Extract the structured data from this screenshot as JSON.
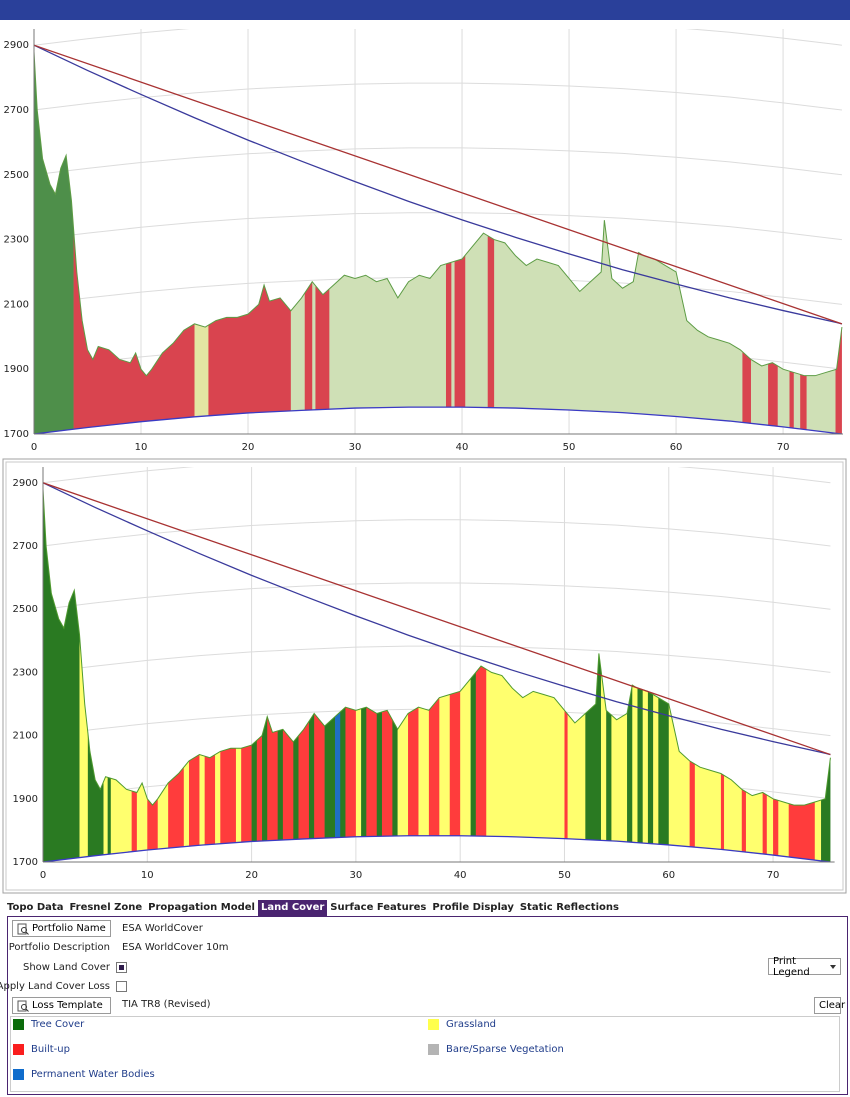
{
  "chart_data": [
    {
      "type": "profile",
      "xlim": [
        0,
        75.6
      ],
      "ylim": [
        1700,
        2950
      ],
      "xticks": [
        0,
        10,
        20,
        30,
        40,
        50,
        60,
        70
      ],
      "yticks": [
        1700,
        1900,
        2100,
        2300,
        2500,
        2700,
        2900
      ],
      "grid": true,
      "color": "#5d9c45",
      "x": [
        0,
        0.3,
        0.8,
        1.5,
        2,
        2.5,
        3,
        3.5,
        4,
        4.5,
        5,
        5.5,
        6,
        7,
        8,
        9,
        9.5,
        10,
        10.5,
        11,
        12,
        13,
        14,
        15,
        16,
        17,
        18,
        19,
        20,
        21,
        21.5,
        22,
        23,
        24,
        25,
        26,
        27,
        28,
        29,
        30,
        31,
        32,
        33,
        34,
        35,
        36,
        37,
        38,
        39,
        40,
        41,
        42,
        43,
        44,
        45,
        46,
        47,
        48,
        49,
        50,
        51,
        52,
        53,
        53.3,
        54,
        55,
        56,
        56.5,
        57,
        58,
        59,
        60,
        61,
        62,
        63,
        64,
        65,
        66,
        67,
        68,
        69,
        70,
        71,
        72,
        73,
        74,
        75,
        75.5
      ],
      "values": [
        2880,
        2700,
        2550,
        2470,
        2440,
        2520,
        2560,
        2420,
        2200,
        2050,
        1960,
        1930,
        1970,
        1960,
        1930,
        1920,
        1950,
        1900,
        1880,
        1900,
        1950,
        1980,
        2020,
        2040,
        2030,
        2050,
        2060,
        2060,
        2070,
        2100,
        2160,
        2110,
        2120,
        2080,
        2120,
        2170,
        2130,
        2160,
        2190,
        2180,
        2190,
        2170,
        2180,
        2120,
        2170,
        2190,
        2180,
        2220,
        2230,
        2240,
        2280,
        2320,
        2300,
        2290,
        2250,
        2220,
        2240,
        2230,
        2220,
        2180,
        2140,
        2170,
        2200,
        2360,
        2180,
        2150,
        2170,
        2260,
        2250,
        2240,
        2220,
        2200,
        2050,
        2020,
        2000,
        1990,
        1980,
        1960,
        1930,
        1910,
        1920,
        1900,
        1890,
        1880,
        1880,
        1890,
        1900,
        2030
      ],
      "sightline": {
        "color": "#a83232",
        "x": [
          0,
          75.5
        ],
        "values": [
          2900,
          2040
        ]
      },
      "curved_sightline": {
        "color": "#3a3a9c",
        "x": [
          0,
          5,
          10,
          15,
          20,
          25,
          30,
          35,
          40,
          45,
          50,
          55,
          60,
          65,
          70,
          75,
          75.5
        ],
        "values": [
          2900,
          2822,
          2748,
          2676,
          2607,
          2542,
          2479,
          2418,
          2361,
          2307,
          2256,
          2207,
          2163,
          2120,
          2081,
          2044,
          2040
        ]
      },
      "earth_curve": {
        "color": "#3a3ac4",
        "x": [
          0,
          5,
          10,
          15,
          20,
          25,
          30,
          35,
          40,
          45,
          50,
          55,
          60,
          65,
          70,
          75,
          75.5
        ],
        "values": [
          1700,
          1720,
          1738,
          1753,
          1765,
          1773,
          1780,
          1783,
          1783,
          1780,
          1774,
          1766,
          1754,
          1740,
          1722,
          1702,
          1700
        ]
      },
      "land_cover": [
        {
          "start": 0,
          "end": 3.7,
          "color": "#4e8f4a"
        },
        {
          "start": 3.7,
          "end": 15,
          "color": "#d9444f"
        },
        {
          "start": 15,
          "end": 16.3,
          "color": "#e3e6a3"
        },
        {
          "start": 16.3,
          "end": 24,
          "color": "#d9444f"
        },
        {
          "start": 24,
          "end": 25.3,
          "color": "#cfe0b6"
        },
        {
          "start": 25.3,
          "end": 26,
          "color": "#d9444f"
        },
        {
          "start": 26,
          "end": 26.3,
          "color": "#cfe0b6"
        },
        {
          "start": 26.3,
          "end": 27.6,
          "color": "#d9444f"
        },
        {
          "start": 27.6,
          "end": 38.5,
          "color": "#cfe0b6"
        },
        {
          "start": 38.5,
          "end": 39,
          "color": "#d9444f"
        },
        {
          "start": 39,
          "end": 39.3,
          "color": "#cfe0b6"
        },
        {
          "start": 39.3,
          "end": 40.3,
          "color": "#d9444f"
        },
        {
          "start": 40.3,
          "end": 42.4,
          "color": "#cfe0b6"
        },
        {
          "start": 42.4,
          "end": 43,
          "color": "#d9444f"
        },
        {
          "start": 43,
          "end": 66.2,
          "color": "#cfe0b6"
        },
        {
          "start": 66.2,
          "end": 67,
          "color": "#d9444f"
        },
        {
          "start": 67,
          "end": 68.6,
          "color": "#cfe0b6"
        },
        {
          "start": 68.6,
          "end": 69.5,
          "color": "#d9444f"
        },
        {
          "start": 69.5,
          "end": 70.6,
          "color": "#cfe0b6"
        },
        {
          "start": 70.6,
          "end": 71,
          "color": "#d9444f"
        },
        {
          "start": 71,
          "end": 71.6,
          "color": "#cfe0b6"
        },
        {
          "start": 71.6,
          "end": 72.2,
          "color": "#d9444f"
        },
        {
          "start": 72.2,
          "end": 74.9,
          "color": "#cfe0b6"
        },
        {
          "start": 74.9,
          "end": 75.5,
          "color": "#d9444f"
        }
      ]
    },
    {
      "type": "profile",
      "xlim": [
        0,
        75.9
      ],
      "ylim": [
        1700,
        2950
      ],
      "xticks": [
        0,
        10,
        20,
        30,
        40,
        50,
        60,
        70
      ],
      "yticks": [
        1700,
        1900,
        2100,
        2300,
        2500,
        2700,
        2900
      ],
      "grid": true,
      "color": "#4f9a2f",
      "x": [
        0,
        0.3,
        0.8,
        1.5,
        2,
        2.5,
        3,
        3.5,
        4,
        4.5,
        5,
        5.5,
        6,
        7,
        8,
        9,
        9.5,
        10,
        10.5,
        11,
        12,
        13,
        14,
        15,
        16,
        17,
        18,
        19,
        20,
        21,
        21.5,
        22,
        23,
        24,
        25,
        26,
        27,
        28,
        29,
        30,
        31,
        32,
        33,
        34,
        35,
        36,
        37,
        38,
        39,
        40,
        41,
        42,
        43,
        44,
        45,
        46,
        47,
        48,
        49,
        50,
        51,
        52,
        53,
        53.3,
        54,
        55,
        56,
        56.5,
        57,
        58,
        59,
        60,
        61,
        62,
        63,
        64,
        65,
        66,
        67,
        68,
        69,
        70,
        71,
        72,
        73,
        74,
        75,
        75.5
      ],
      "values": [
        2880,
        2700,
        2550,
        2470,
        2440,
        2520,
        2560,
        2420,
        2200,
        2050,
        1960,
        1930,
        1970,
        1960,
        1930,
        1920,
        1950,
        1900,
        1880,
        1900,
        1950,
        1980,
        2020,
        2040,
        2030,
        2050,
        2060,
        2060,
        2070,
        2100,
        2160,
        2110,
        2120,
        2080,
        2120,
        2170,
        2130,
        2160,
        2190,
        2180,
        2190,
        2170,
        2180,
        2120,
        2170,
        2190,
        2180,
        2220,
        2230,
        2240,
        2280,
        2320,
        2300,
        2290,
        2250,
        2220,
        2240,
        2230,
        2220,
        2180,
        2140,
        2170,
        2200,
        2360,
        2180,
        2150,
        2170,
        2260,
        2250,
        2240,
        2220,
        2200,
        2050,
        2020,
        2000,
        1990,
        1980,
        1960,
        1930,
        1910,
        1920,
        1900,
        1890,
        1880,
        1880,
        1890,
        1900,
        2030
      ],
      "sightline": {
        "color": "#a83232",
        "x": [
          0,
          75.5
        ],
        "values": [
          2900,
          2040
        ]
      },
      "curved_sightline": {
        "color": "#3a3a9c",
        "x": [
          0,
          5,
          10,
          15,
          20,
          25,
          30,
          35,
          40,
          45,
          50,
          55,
          60,
          65,
          70,
          75,
          75.5
        ],
        "values": [
          2900,
          2822,
          2748,
          2676,
          2607,
          2542,
          2479,
          2418,
          2361,
          2307,
          2256,
          2207,
          2163,
          2120,
          2081,
          2044,
          2040
        ]
      },
      "earth_curve": {
        "color": "#3a3ac4",
        "x": [
          0,
          5,
          10,
          15,
          20,
          25,
          30,
          35,
          40,
          45,
          50,
          55,
          60,
          65,
          70,
          75,
          75.5
        ],
        "values": [
          1700,
          1720,
          1738,
          1753,
          1765,
          1773,
          1780,
          1783,
          1783,
          1780,
          1774,
          1766,
          1754,
          1740,
          1722,
          1702,
          1700
        ]
      },
      "land_cover": [
        {
          "start": 0,
          "end": 3.5,
          "color": "#2a7a22"
        },
        {
          "start": 3.5,
          "end": 4.3,
          "color": "#ffff6e"
        },
        {
          "start": 4.3,
          "end": 5.8,
          "color": "#2a7a22"
        },
        {
          "start": 5.8,
          "end": 6.2,
          "color": "#ffff6e"
        },
        {
          "start": 6.2,
          "end": 6.5,
          "color": "#2a7a22"
        },
        {
          "start": 6.5,
          "end": 8.5,
          "color": "#ffff6e"
        },
        {
          "start": 8.5,
          "end": 9,
          "color": "#ff3c3c"
        },
        {
          "start": 9,
          "end": 10,
          "color": "#ffff6e"
        },
        {
          "start": 10,
          "end": 11,
          "color": "#ff3c3c"
        },
        {
          "start": 11,
          "end": 12,
          "color": "#ffff6e"
        },
        {
          "start": 12,
          "end": 13.5,
          "color": "#ff3c3c"
        },
        {
          "start": 13.5,
          "end": 14,
          "color": "#ffff6e"
        },
        {
          "start": 14,
          "end": 15,
          "color": "#ff3c3c"
        },
        {
          "start": 15,
          "end": 15.5,
          "color": "#ffff6e"
        },
        {
          "start": 15.5,
          "end": 16.5,
          "color": "#ff3c3c"
        },
        {
          "start": 16.5,
          "end": 17,
          "color": "#ffff6e"
        },
        {
          "start": 17,
          "end": 18.5,
          "color": "#ff3c3c"
        },
        {
          "start": 18.5,
          "end": 19,
          "color": "#ffff6e"
        },
        {
          "start": 19,
          "end": 20,
          "color": "#ff3c3c"
        },
        {
          "start": 20,
          "end": 20.5,
          "color": "#2a7a22"
        },
        {
          "start": 20.5,
          "end": 21,
          "color": "#ff3c3c"
        },
        {
          "start": 21,
          "end": 21.5,
          "color": "#2a7a22"
        },
        {
          "start": 21.5,
          "end": 22.5,
          "color": "#ff3c3c"
        },
        {
          "start": 22.5,
          "end": 23,
          "color": "#2a7a22"
        },
        {
          "start": 23,
          "end": 24,
          "color": "#ff3c3c"
        },
        {
          "start": 24,
          "end": 24.5,
          "color": "#2a7a22"
        },
        {
          "start": 24.5,
          "end": 25.5,
          "color": "#ff3c3c"
        },
        {
          "start": 25.5,
          "end": 26,
          "color": "#2a7a22"
        },
        {
          "start": 26,
          "end": 27,
          "color": "#ff3c3c"
        },
        {
          "start": 27,
          "end": 28,
          "color": "#2a7a22"
        },
        {
          "start": 28,
          "end": 28.5,
          "color": "#1f6fc4"
        },
        {
          "start": 28.5,
          "end": 29,
          "color": "#2a7a22"
        },
        {
          "start": 29,
          "end": 30,
          "color": "#ff3c3c"
        },
        {
          "start": 30,
          "end": 30.5,
          "color": "#ffff6e"
        },
        {
          "start": 30.5,
          "end": 31,
          "color": "#2a7a22"
        },
        {
          "start": 31,
          "end": 32,
          "color": "#ff3c3c"
        },
        {
          "start": 32,
          "end": 32.5,
          "color": "#2a7a22"
        },
        {
          "start": 32.5,
          "end": 33.5,
          "color": "#ff3c3c"
        },
        {
          "start": 33.5,
          "end": 34,
          "color": "#2a7a22"
        },
        {
          "start": 34,
          "end": 35,
          "color": "#ffff6e"
        },
        {
          "start": 35,
          "end": 36,
          "color": "#ff3c3c"
        },
        {
          "start": 36,
          "end": 37,
          "color": "#ffff6e"
        },
        {
          "start": 37,
          "end": 38,
          "color": "#ff3c3c"
        },
        {
          "start": 38,
          "end": 39,
          "color": "#ffff6e"
        },
        {
          "start": 39,
          "end": 40,
          "color": "#ff3c3c"
        },
        {
          "start": 40,
          "end": 41,
          "color": "#ffff6e"
        },
        {
          "start": 41,
          "end": 41.5,
          "color": "#2a7a22"
        },
        {
          "start": 41.5,
          "end": 42.5,
          "color": "#ff3c3c"
        },
        {
          "start": 42.5,
          "end": 50,
          "color": "#ffff6e"
        },
        {
          "start": 50,
          "end": 50.3,
          "color": "#ff3c3c"
        },
        {
          "start": 50.3,
          "end": 52,
          "color": "#ffff6e"
        },
        {
          "start": 52,
          "end": 53.5,
          "color": "#2a7a22"
        },
        {
          "start": 53.5,
          "end": 54,
          "color": "#ffff6e"
        },
        {
          "start": 54,
          "end": 54.5,
          "color": "#2a7a22"
        },
        {
          "start": 54.5,
          "end": 56,
          "color": "#ffff6e"
        },
        {
          "start": 56,
          "end": 56.5,
          "color": "#2a7a22"
        },
        {
          "start": 56.5,
          "end": 57,
          "color": "#ffff6e"
        },
        {
          "start": 57,
          "end": 57.5,
          "color": "#2a7a22"
        },
        {
          "start": 57.5,
          "end": 58,
          "color": "#ffff6e"
        },
        {
          "start": 58,
          "end": 58.5,
          "color": "#2a7a22"
        },
        {
          "start": 58.5,
          "end": 59,
          "color": "#ffff6e"
        },
        {
          "start": 59,
          "end": 60,
          "color": "#2a7a22"
        },
        {
          "start": 60,
          "end": 62,
          "color": "#ffff6e"
        },
        {
          "start": 62,
          "end": 62.5,
          "color": "#ff3c3c"
        },
        {
          "start": 62.5,
          "end": 65,
          "color": "#ffff6e"
        },
        {
          "start": 65,
          "end": 65.3,
          "color": "#ff3c3c"
        },
        {
          "start": 65.3,
          "end": 67,
          "color": "#ffff6e"
        },
        {
          "start": 67,
          "end": 67.4,
          "color": "#ff3c3c"
        },
        {
          "start": 67.4,
          "end": 69,
          "color": "#ffff6e"
        },
        {
          "start": 69,
          "end": 69.4,
          "color": "#ff3c3c"
        },
        {
          "start": 69.4,
          "end": 70,
          "color": "#ffff6e"
        },
        {
          "start": 70,
          "end": 70.5,
          "color": "#ff3c3c"
        },
        {
          "start": 70.5,
          "end": 71.5,
          "color": "#ffff6e"
        },
        {
          "start": 71.5,
          "end": 74,
          "color": "#ff3c3c"
        },
        {
          "start": 74,
          "end": 74.6,
          "color": "#ffff6e"
        },
        {
          "start": 74.6,
          "end": 75.5,
          "color": "#2a7a22"
        }
      ]
    }
  ],
  "tabs": [
    {
      "label": "Topo Data"
    },
    {
      "label": "Fresnel Zone"
    },
    {
      "label": "Propagation Model"
    },
    {
      "label": "Land Cover",
      "active": true
    },
    {
      "label": "Surface Features"
    },
    {
      "label": "Profile Display"
    },
    {
      "label": "Static Reflections"
    }
  ],
  "land_cover_panel": {
    "portfolio_name_button": "Portfolio Name",
    "portfolio_name": "ESA WorldCover",
    "portfolio_description_label": "Portfolio Description",
    "portfolio_description": "ESA WorldCover 10m",
    "show_land_cover": {
      "label": "Show Land Cover",
      "checked": true
    },
    "apply_land_cover_loss": {
      "label": "Apply Land Cover Loss",
      "checked": false
    },
    "print_legend": "Print Legend",
    "loss_template_button": "Loss Template",
    "loss_template": "TIA TR8 (Revised)",
    "clear_button": "Clear",
    "legend": [
      {
        "label": "Tree Cover",
        "color": "#0b6b0b"
      },
      {
        "label": "Grassland",
        "color": "#ffff4c"
      },
      {
        "label": "Built-up",
        "color": "#fa1e1e"
      },
      {
        "label": "Bare/Sparse Vegetation",
        "color": "#b4b4b4"
      },
      {
        "label": "Permanent Water Bodies",
        "color": "#0f6ccc"
      }
    ]
  }
}
